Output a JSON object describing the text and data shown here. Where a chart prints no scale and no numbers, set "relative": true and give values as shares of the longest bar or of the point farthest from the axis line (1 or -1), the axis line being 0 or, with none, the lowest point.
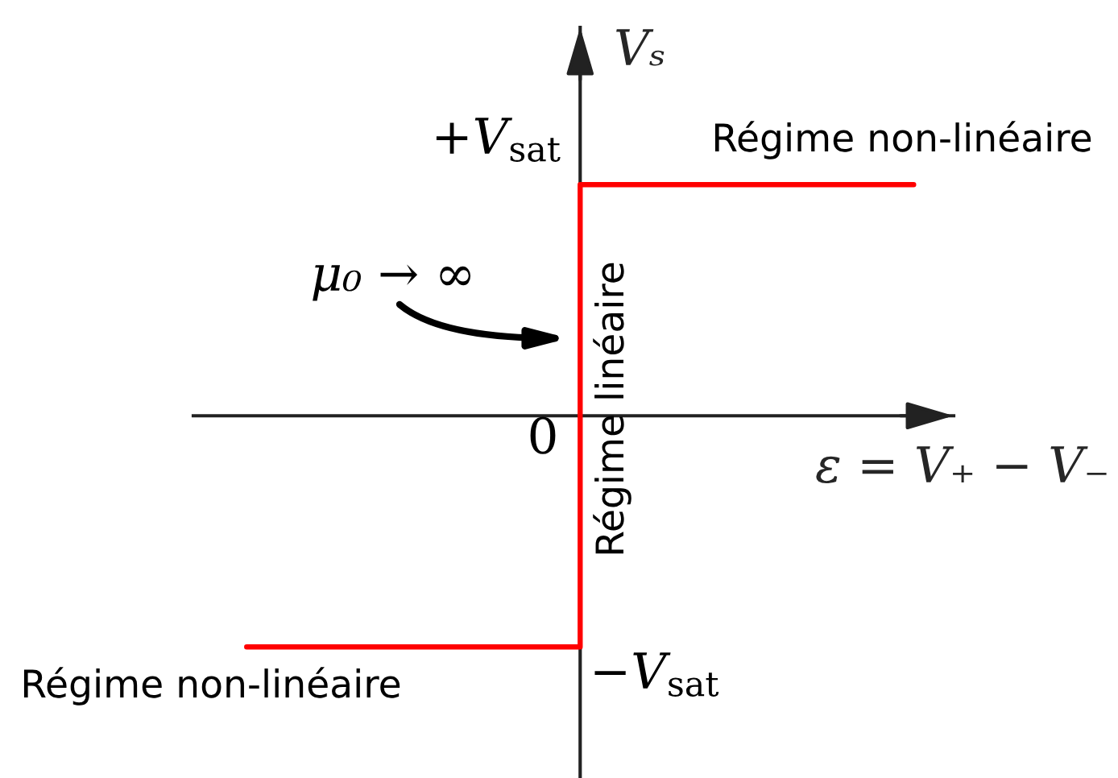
{
  "chart_data": {
    "type": "step",
    "relative": true,
    "xlabel": "ε = V₊ − V₋",
    "ylabel": "Vₛ",
    "categories": [
      null,
      null,
      null
    ],
    "series": [
      {
        "color": "#ff0000",
        "values": [
          -1,
          1,
          1
        ]
      }
    ],
    "annotations": [
      "+V$_{sat}$",
      "Régime non-linéaire",
      "μ₀ → ∞",
      "0",
      "Régime linéaire",
      "−V$_{sat}$",
      "Régime non-linéaire"
    ]
  }
}
